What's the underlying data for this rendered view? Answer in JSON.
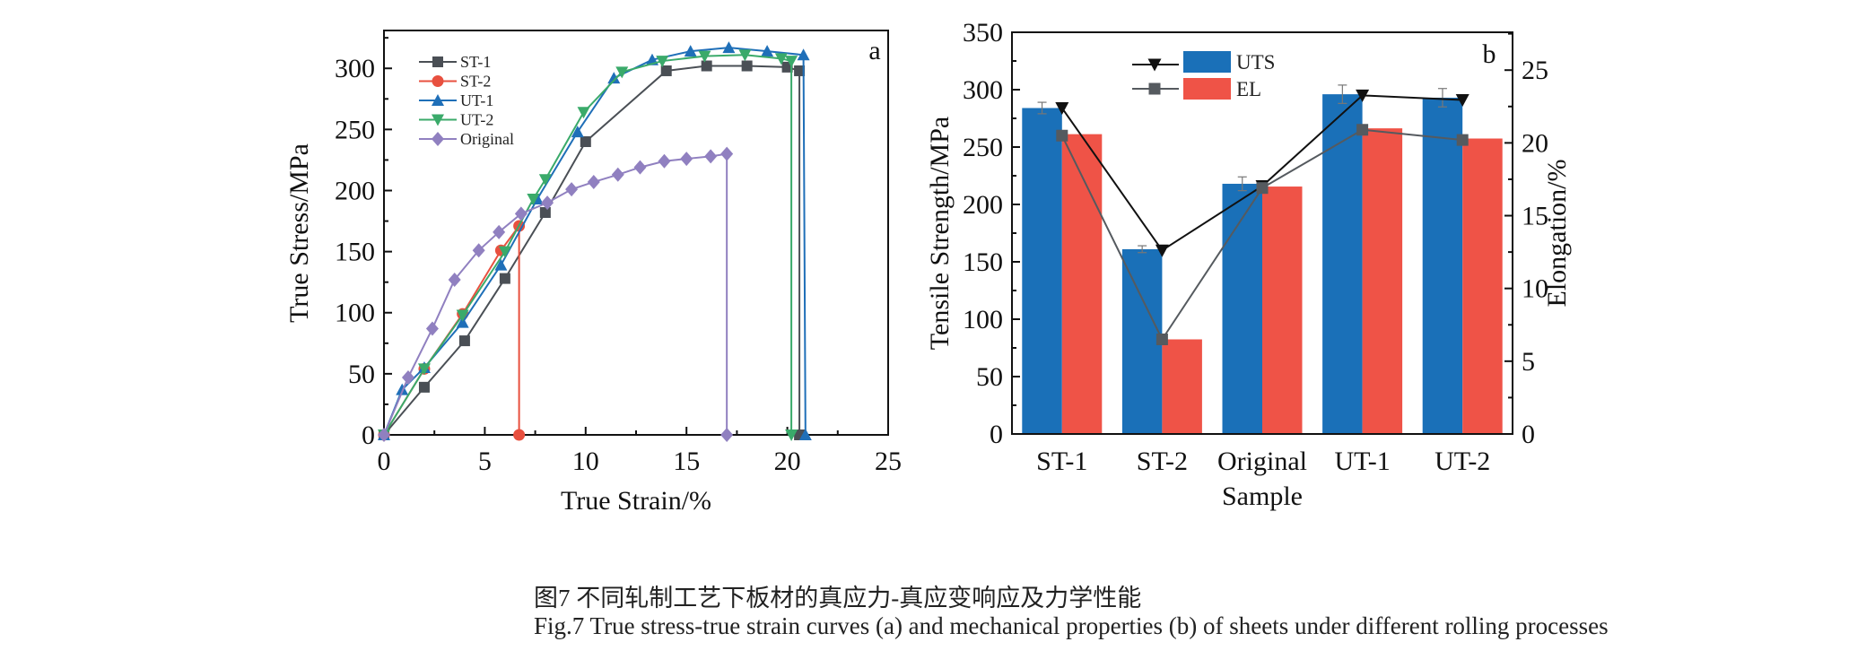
{
  "chart_data": [
    {
      "type": "line",
      "panel_label": "a",
      "xlabel": "True Strain/%",
      "ylabel": "True Stress/MPa",
      "xlim": [
        0,
        25
      ],
      "ylim": [
        0,
        331
      ],
      "xticks": [
        "0",
        "5",
        "10",
        "15",
        "20",
        "25"
      ],
      "yticks": [
        "0",
        "50",
        "100",
        "150",
        "200",
        "250",
        "300"
      ],
      "grid": false,
      "legend_position": "top-left",
      "series": [
        {
          "name": "ST-1",
          "color": "#4a4f55",
          "marker": "square",
          "x": [
            0,
            2.0,
            4.0,
            6.0,
            8.0,
            10.0,
            14.0,
            16.0,
            18.0,
            20.0,
            20.6,
            20.6
          ],
          "y": [
            0,
            39,
            77,
            128,
            182,
            240,
            298,
            302,
            302,
            301,
            298,
            0
          ]
        },
        {
          "name": "ST-2",
          "color": "#e8503f",
          "marker": "circle",
          "x": [
            0,
            2.0,
            3.9,
            5.8,
            6.7,
            6.7
          ],
          "y": [
            0,
            54,
            99,
            151,
            171,
            0
          ]
        },
        {
          "name": "UT-1",
          "color": "#1f6fb8",
          "marker": "triangle-up",
          "x": [
            0,
            0.9,
            2.0,
            3.9,
            5.8,
            7.6,
            9.6,
            11.4,
            13.3,
            15.2,
            17.1,
            19.0,
            20.8,
            20.9
          ],
          "y": [
            0,
            37,
            55,
            92,
            139,
            193,
            248,
            292,
            307,
            314,
            317,
            314,
            311,
            0
          ]
        },
        {
          "name": "UT-2",
          "color": "#3aaa6a",
          "marker": "triangle-down",
          "x": [
            0,
            2.0,
            3.9,
            6.0,
            7.4,
            8.0,
            9.9,
            11.8,
            13.8,
            15.9,
            17.9,
            19.7,
            20.2,
            20.2
          ],
          "y": [
            0,
            54,
            98,
            150,
            193,
            209,
            264,
            297,
            306,
            310,
            311,
            308,
            306,
            0
          ]
        },
        {
          "name": "Original",
          "color": "#9080c0",
          "marker": "diamond",
          "x": [
            0,
            1.2,
            2.4,
            3.5,
            4.7,
            5.7,
            6.8,
            8.1,
            9.3,
            10.4,
            11.6,
            12.7,
            13.9,
            15.0,
            16.2,
            17.0,
            17.0
          ],
          "y": [
            0,
            47,
            87,
            127,
            151,
            166,
            181,
            190,
            201,
            207,
            213,
            219,
            224,
            226,
            228,
            230,
            0
          ]
        }
      ]
    },
    {
      "type": "bar",
      "panel_label": "b",
      "xlabel": "Sample",
      "ylabel": "Tensile Strength/MPa",
      "ylabel_right": "Elongation/%",
      "categories": [
        "ST-1",
        "ST-2",
        "Original",
        "UT-1",
        "UT-2"
      ],
      "ylim": [
        0,
        350
      ],
      "ylim_right": [
        0,
        27.6
      ],
      "yticks": [
        "0",
        "50",
        "100",
        "150",
        "200",
        "250",
        "300",
        "350"
      ],
      "yticks_right": [
        "0",
        "5",
        "10",
        "15",
        "20",
        "25"
      ],
      "grid": false,
      "legend_position": "top-center",
      "series": [
        {
          "name": "UTS",
          "color": "#1a70b8",
          "axis": "left",
          "values": [
            284,
            161,
            218,
            296,
            293
          ],
          "errors": [
            5,
            3,
            6,
            8,
            8
          ],
          "line_values": [
            284,
            160,
            216,
            295,
            291
          ],
          "line_color": "#111111",
          "marker": "triangle-down"
        },
        {
          "name": "EL",
          "color": "#ef5347",
          "axis": "right",
          "values": [
            20.6,
            6.5,
            17.0,
            21.0,
            20.3
          ],
          "line_values": [
            20.5,
            6.5,
            16.9,
            20.9,
            20.2
          ],
          "line_color": "#555a5f",
          "marker": "square"
        }
      ]
    }
  ],
  "caption": {
    "zh": "图7  不同轧制工艺下板材的真应力-真应变响应及力学性能",
    "en": "Fig.7  True stress-true strain curves (a) and mechanical properties (b) of sheets under different rolling processes"
  }
}
